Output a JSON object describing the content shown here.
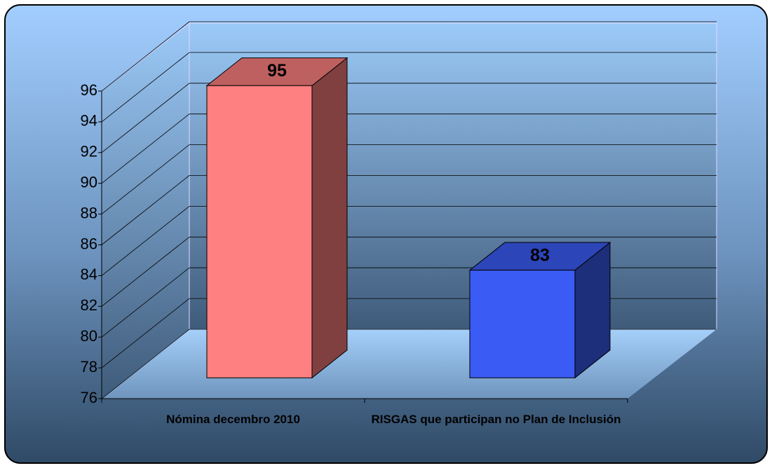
{
  "chart_data": {
    "type": "bar",
    "categories": [
      "Nómina decembro 2010",
      "RISGAS que participan no Plan de Inclusión"
    ],
    "values": [
      95,
      83
    ],
    "colors": [
      "#ff8080",
      "#3a5cf5"
    ],
    "ylim": [
      76,
      96
    ],
    "yticks": [
      76,
      78,
      80,
      82,
      84,
      86,
      88,
      90,
      92,
      94,
      96
    ],
    "grid": true
  }
}
